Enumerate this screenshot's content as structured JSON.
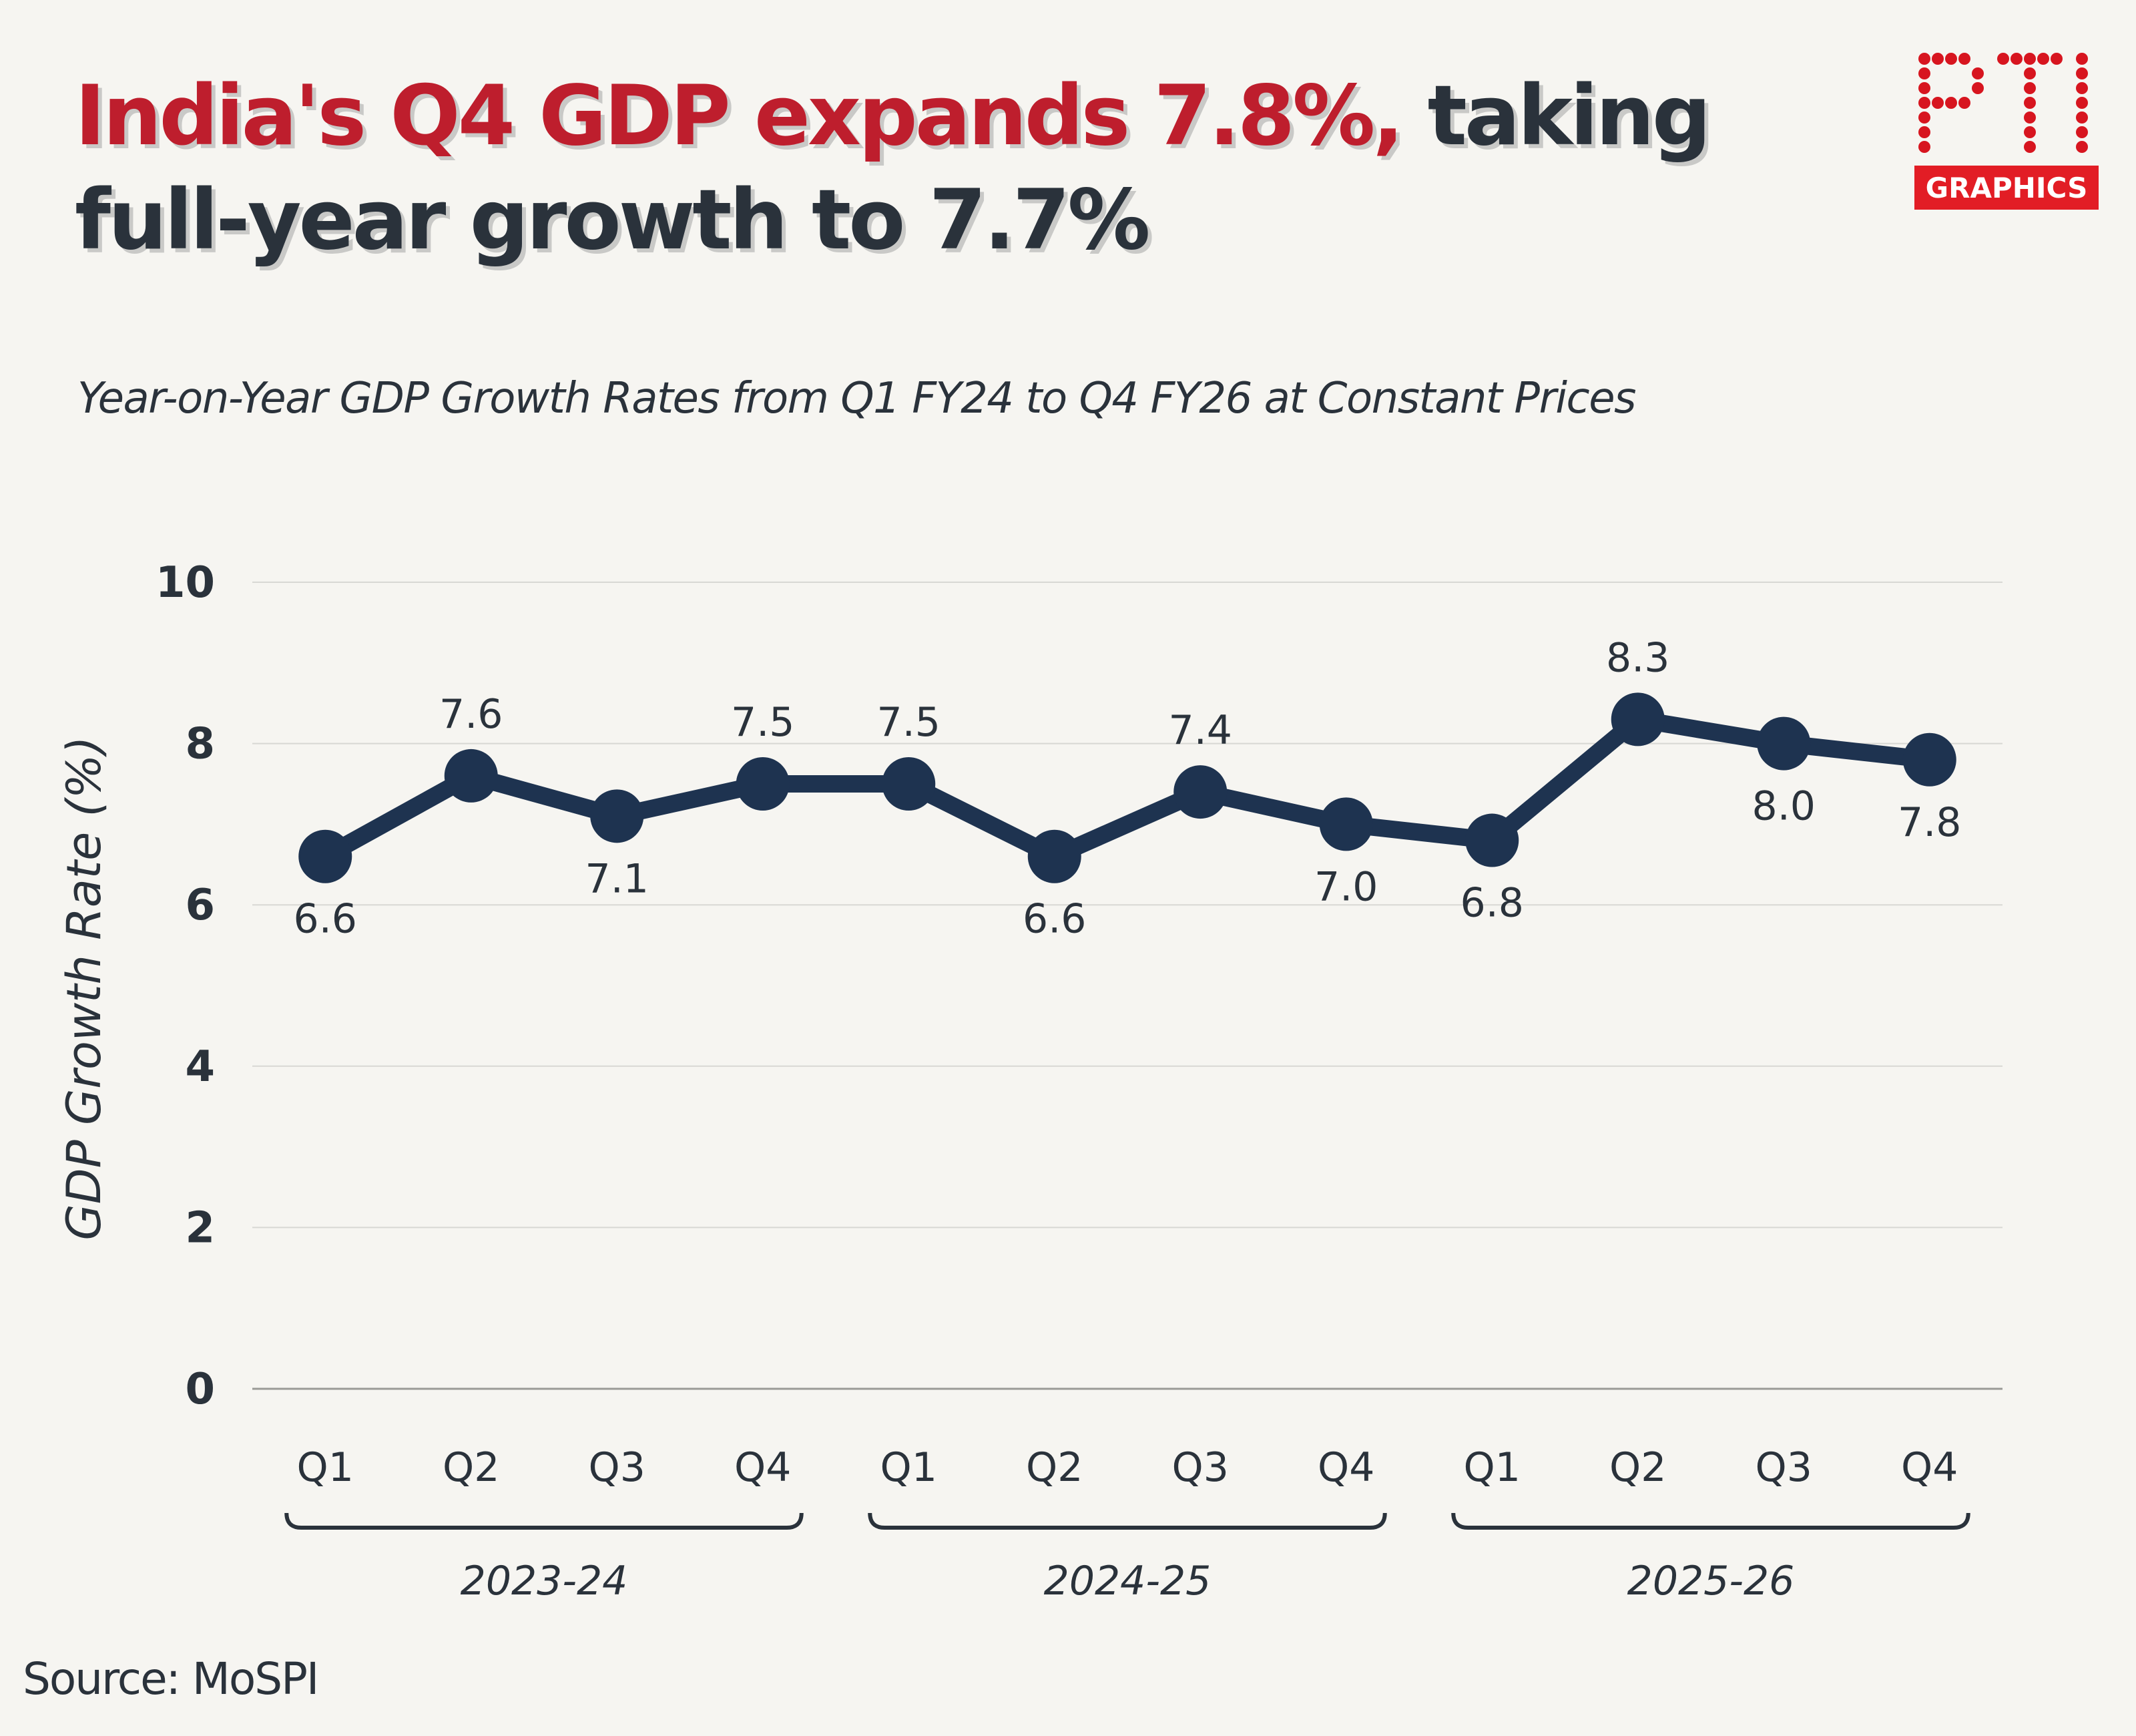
{
  "headline": {
    "red": "India's Q4 GDP expands 7.8%,",
    "dark": " taking full-year growth to 7.7%"
  },
  "subtitle": "Year-on-Year GDP Growth Rates from Q1 FY24 to Q4 FY26 at Constant Prices",
  "logo": {
    "wordmark": "PTI",
    "tagline": "GRAPHICS"
  },
  "source": "Source: MoSPI",
  "colors": {
    "line": "#1e3350",
    "headline_red": "#be1e2d",
    "text": "#2a323b",
    "grid": "#d8d8d4",
    "background": "#f6f5f1"
  },
  "chart_data": {
    "type": "line",
    "ylabel": "GDP Growth Rate (%)",
    "ylim": [
      0,
      10
    ],
    "yticks": [
      0,
      2,
      4,
      6,
      8,
      10
    ],
    "grid": true,
    "categories": [
      "Q1",
      "Q2",
      "Q3",
      "Q4",
      "Q1",
      "Q2",
      "Q3",
      "Q4",
      "Q1",
      "Q2",
      "Q3",
      "Q4"
    ],
    "groups": [
      {
        "label": "2023-24",
        "span": [
          0,
          3
        ]
      },
      {
        "label": "2024-25",
        "span": [
          4,
          7
        ]
      },
      {
        "label": "2025-26",
        "span": [
          8,
          11
        ]
      }
    ],
    "values": [
      6.6,
      7.6,
      7.1,
      7.5,
      7.5,
      6.6,
      7.4,
      7.0,
      6.8,
      8.3,
      8.0,
      7.8
    ],
    "label_positions": [
      "below",
      "above",
      "below",
      "above",
      "above",
      "below",
      "above",
      "below",
      "below",
      "above",
      "below",
      "below"
    ]
  }
}
